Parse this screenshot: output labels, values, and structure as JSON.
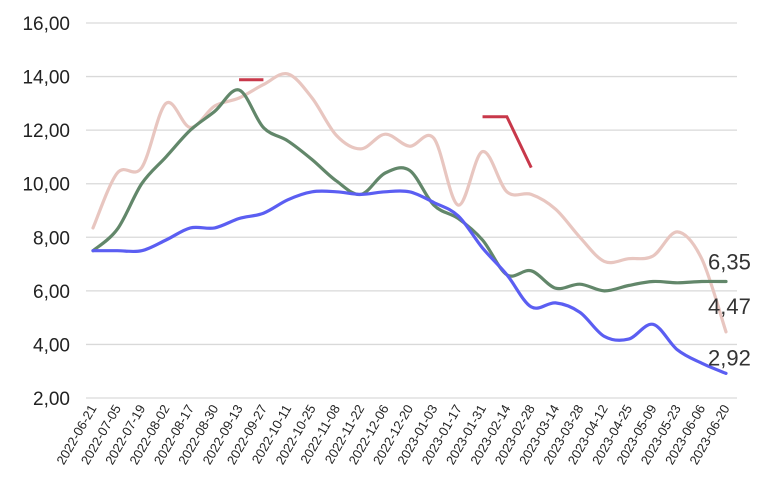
{
  "chart_data": {
    "type": "line",
    "title": "",
    "xlabel": "",
    "ylabel": "",
    "ylim": [
      2,
      16
    ],
    "yticks": [
      "2,00",
      "4,00",
      "6,00",
      "8,00",
      "10,00",
      "12,00",
      "14,00",
      "16,00"
    ],
    "grid": true,
    "legend": "none",
    "x": [
      "2022-06-21",
      "2022-07-05",
      "2022-07-19",
      "2022-08-02",
      "2022-08-17",
      "2022-08-30",
      "2022-09-13",
      "2022-09-27",
      "2022-10-11",
      "2022-10-25",
      "2022-11-08",
      "2022-11-22",
      "2022-12-06",
      "2022-12-20",
      "2023-01-03",
      "2023-01-17",
      "2023-01-31",
      "2023-02-14",
      "2023-02-28",
      "2023-03-14",
      "2023-03-28",
      "2023-04-12",
      "2023-04-25",
      "2023-05-09",
      "2023-05-23",
      "2023-06-06",
      "2023-06-20"
    ],
    "series": [
      {
        "color": "#e8c6c0",
        "values": [
          8.35,
          10.4,
          10.6,
          13.0,
          12.1,
          12.9,
          13.2,
          13.7,
          14.1,
          13.2,
          11.8,
          11.3,
          11.85,
          11.4,
          11.7,
          9.2,
          11.2,
          9.7,
          9.6,
          9.05,
          8.0,
          7.1,
          7.2,
          7.3,
          8.2,
          7.2,
          4.47
        ],
        "end_label": "4,47"
      },
      {
        "color": "#62876a",
        "values": [
          7.5,
          8.3,
          10.0,
          11.0,
          12.0,
          12.7,
          13.5,
          12.1,
          11.6,
          10.9,
          10.1,
          9.6,
          10.4,
          10.5,
          9.2,
          8.7,
          7.9,
          6.6,
          6.75,
          6.1,
          6.25,
          6.0,
          6.2,
          6.35,
          6.3,
          6.35,
          6.35
        ],
        "end_label": "6,35"
      },
      {
        "color": "#5b5ef2",
        "values": [
          7.5,
          7.5,
          7.5,
          7.9,
          8.35,
          8.35,
          8.7,
          8.9,
          9.4,
          9.7,
          9.7,
          9.6,
          9.7,
          9.7,
          9.3,
          8.8,
          7.6,
          6.6,
          5.4,
          5.55,
          5.2,
          4.3,
          4.2,
          4.75,
          3.8,
          3.3,
          2.92
        ],
        "end_label": "2,92"
      }
    ],
    "annotations": [
      {
        "color": "#c8384a",
        "points": [
          [
            "2022-09-13",
            13.88
          ],
          [
            "2022-09-27",
            13.88
          ]
        ]
      },
      {
        "color": "#c8384a",
        "points": [
          [
            "2023-01-31",
            12.5
          ],
          [
            "2023-02-14",
            12.5
          ],
          [
            "2023-02-28",
            10.6
          ]
        ]
      }
    ]
  }
}
